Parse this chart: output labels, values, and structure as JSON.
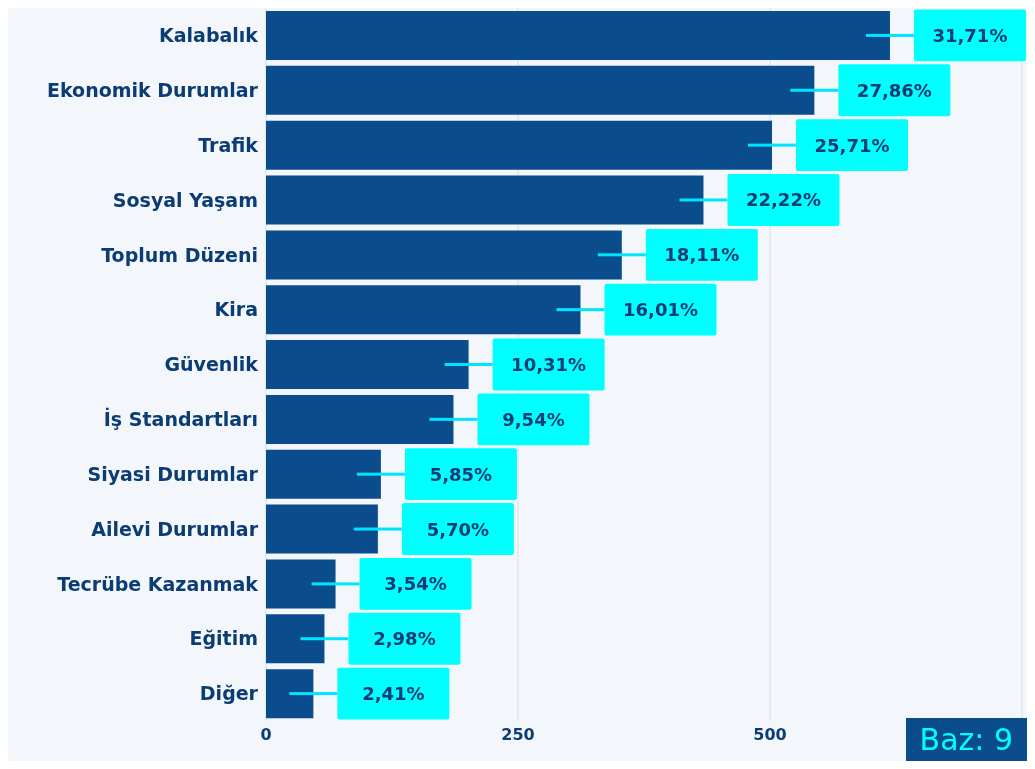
{
  "chart_data": {
    "type": "bar",
    "orientation": "horizontal",
    "categories": [
      "Kalabalık",
      "Ekonomik Durumlar",
      "Trafik",
      "Sosyal Yaşam",
      "Toplum Düzeni",
      "Kira",
      "Güvenlik",
      "İş Standartları",
      "Siyasi Durumlar",
      "Ailevi Durumlar",
      "Tecrübe Kazanmak",
      "Eğitim",
      "Diğer"
    ],
    "values": [
      619,
      544,
      502,
      434,
      353,
      312,
      201,
      186,
      114,
      111,
      69,
      58,
      47
    ],
    "color": "#0b4d8c",
    "xlim": [
      0,
      750
    ],
    "xticks": [
      0,
      250,
      500,
      {
        "value": 750,
        "label": null
      }
    ],
    "grid": "x",
    "annotations": [
      "Baz: 9",
      {
        "text": "31,71%",
        "x": 619,
        "y": "Kalabalık"
      },
      {
        "text": "27,86%",
        "x": 544,
        "y": "Ekonomik Durumlar"
      },
      {
        "text": "25,71%",
        "x": 502,
        "y": "Trafik"
      },
      {
        "text": "22,22%",
        "x": 434,
        "y": "Sosyal Yaşam"
      },
      {
        "text": "18,11%",
        "x": 353,
        "y": "Toplum Düzeni"
      },
      {
        "text": "16,01%",
        "x": 312,
        "y": "Kira"
      },
      {
        "text": "10,31%",
        "x": 201,
        "y": "Güvenlik"
      },
      {
        "text": "9,54%",
        "x": 186,
        "y": "İş Standartları"
      },
      {
        "text": "5,85%",
        "x": 114,
        "y": "Siyasi Durumlar"
      },
      {
        "text": "5,70%",
        "x": 111,
        "y": "Ailevi Durumlar"
      },
      {
        "text": "3,54%",
        "x": 69,
        "y": "Tecrübe Kazanmak"
      },
      {
        "text": "2,98%",
        "x": 58,
        "y": "Eğitim"
      },
      {
        "text": "2,41%",
        "x": 47,
        "y": "Diğer"
      }
    ]
  }
}
